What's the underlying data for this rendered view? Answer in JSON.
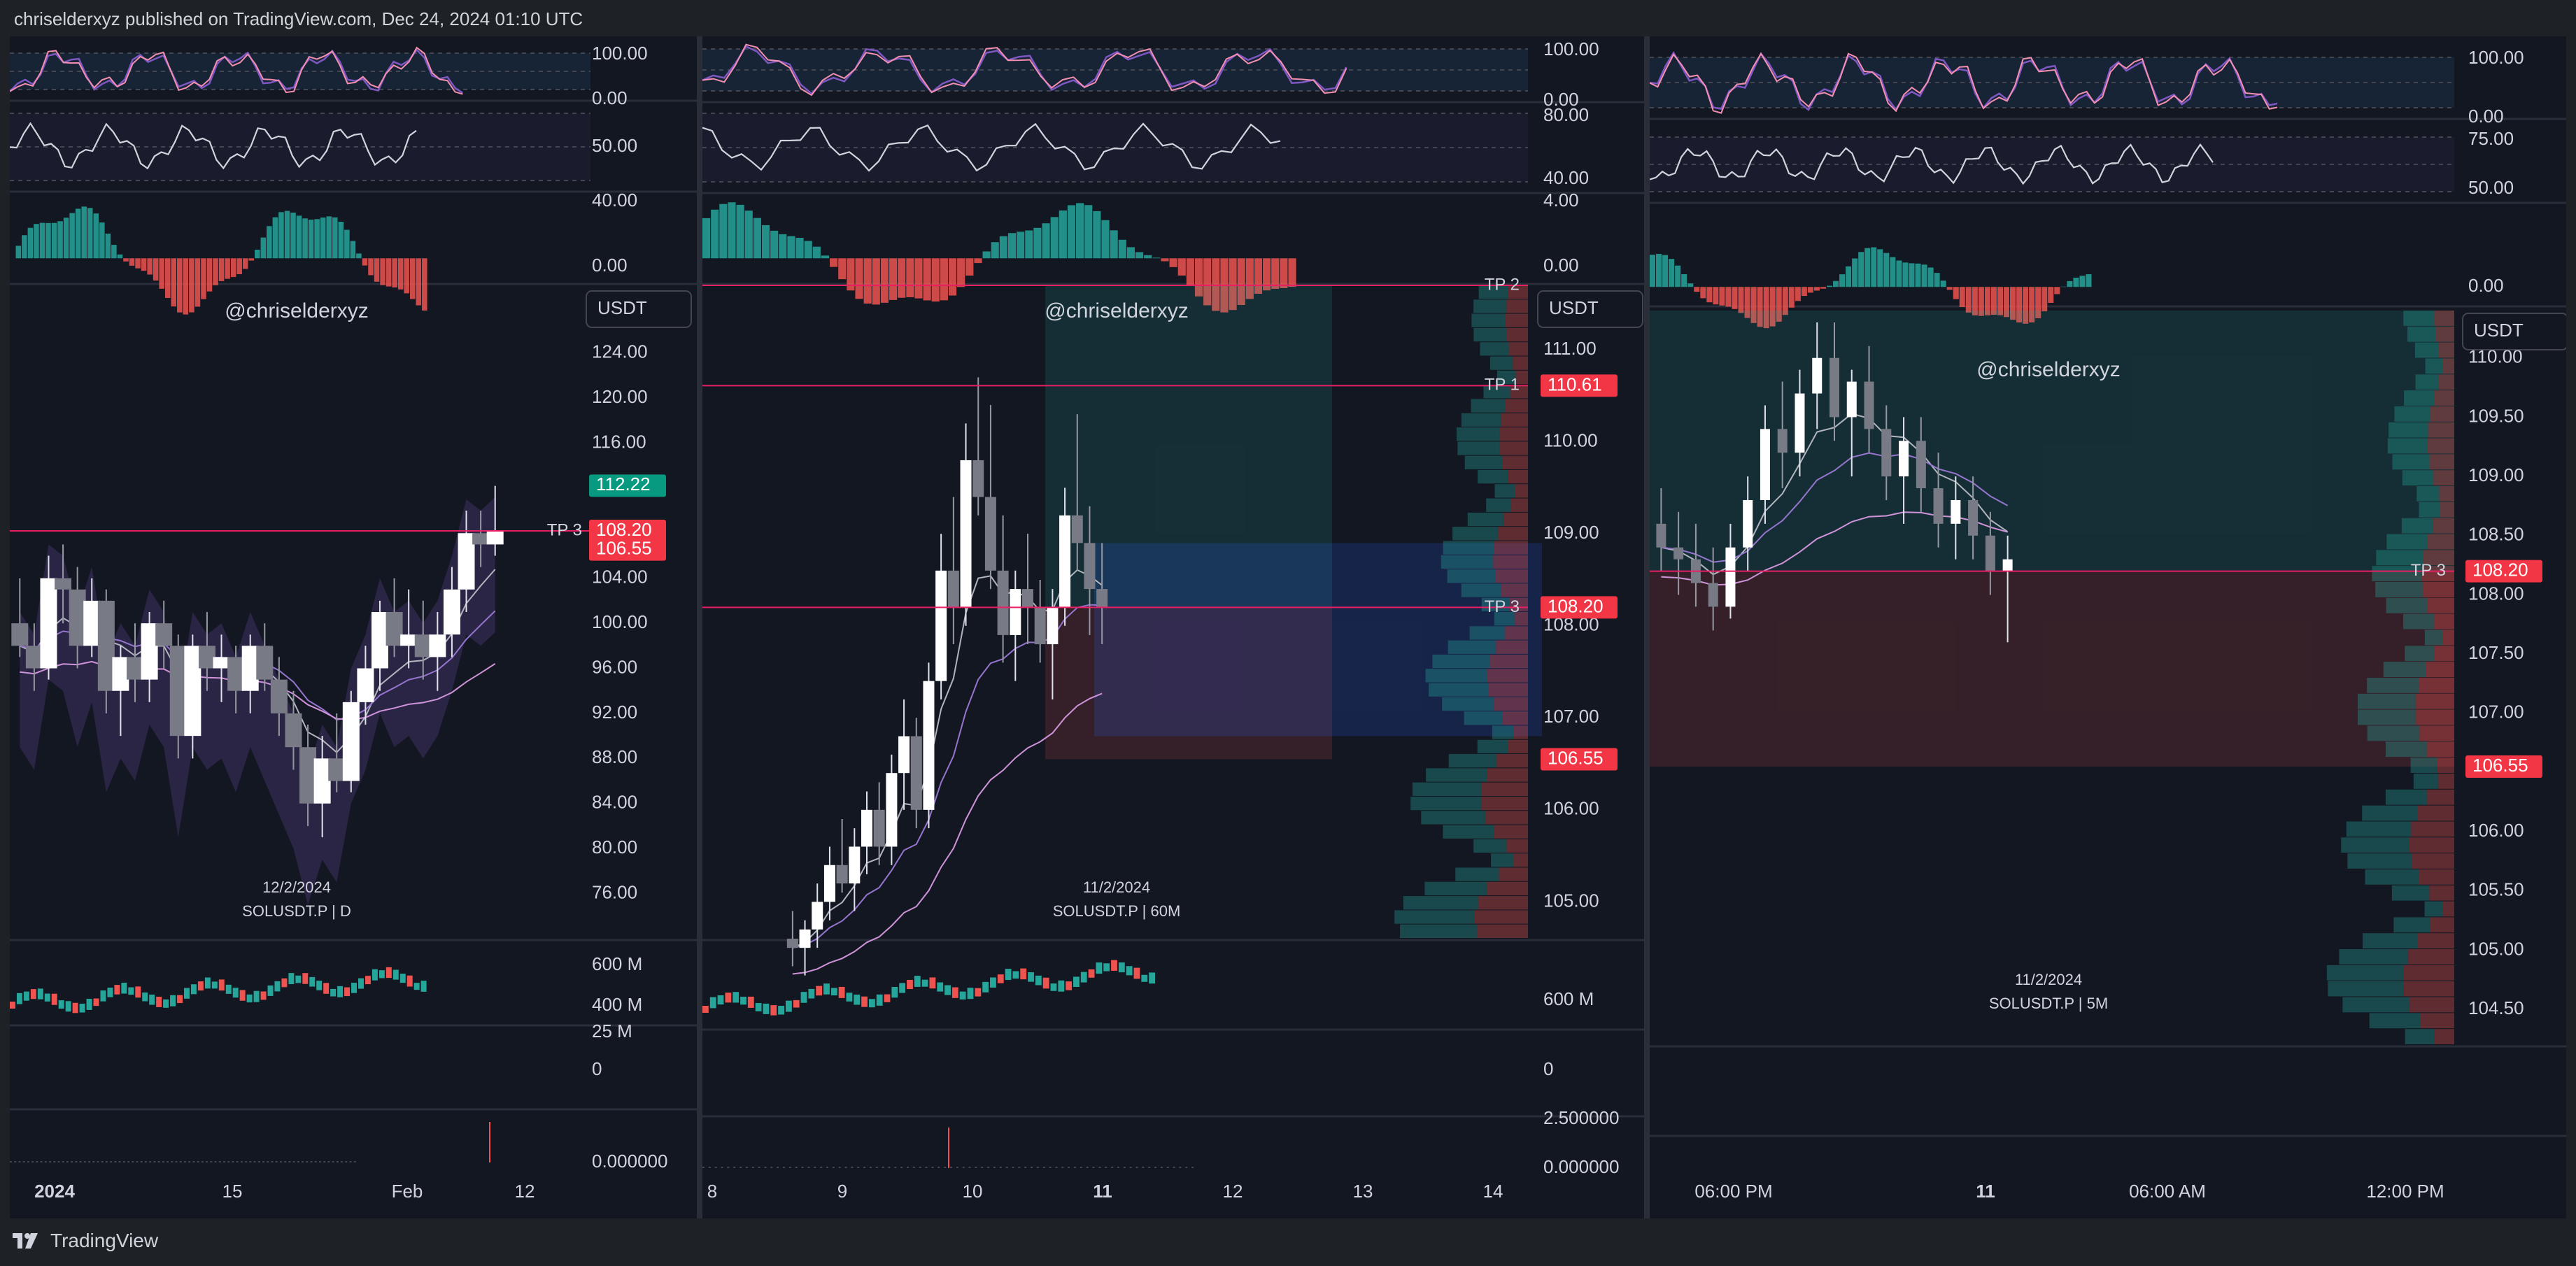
{
  "header": {
    "published": "chriselderxyz published on TradingView.com, Dec 24, 2024 01:10 UTC"
  },
  "footer": {
    "brand": "TradingView",
    "logo_icon": "tradingview-logo-icon"
  },
  "colors": {
    "bg": "#131722",
    "up": "#26a69a",
    "down": "#ef5350",
    "tp_line": "#e91e63",
    "tp_tag": "#f23645",
    "green_tag": "#089981",
    "grid": "#2a2e39",
    "text": "#d1d4dc"
  },
  "chart_data": [
    {
      "type": "candlestick",
      "watermark": "@chriselderxyz",
      "currency": "USDT",
      "symbol_label": "SOLUSDT.P | D",
      "date_label": "12/2/2024",
      "price_axis": [
        "124.00",
        "120.00",
        "116.00",
        "112.00",
        "108.00",
        "104.00",
        "100.00",
        "96.00",
        "92.00",
        "88.00",
        "84.00",
        "80.00",
        "76.00"
      ],
      "ylim": [
        72,
        130
      ],
      "time_axis": [
        "2024",
        "15",
        "Feb",
        "12"
      ],
      "price_tags": [
        {
          "label": "112.22",
          "value": 112.22,
          "color": "green"
        },
        {
          "label": "108.20",
          "value": 108.2,
          "color": "red"
        },
        {
          "label": "106.55",
          "value": 106.55,
          "color": "red"
        }
      ],
      "levels": [
        {
          "label": "TP 3",
          "value": 108.2
        }
      ],
      "candles": [
        [
          100,
          104,
          97,
          98
        ],
        [
          98,
          100,
          94,
          96
        ],
        [
          96,
          106,
          95,
          104
        ],
        [
          104,
          107,
          100,
          103
        ],
        [
          103,
          105,
          96,
          98
        ],
        [
          98,
          104,
          97,
          102
        ],
        [
          102,
          103,
          92,
          94
        ],
        [
          94,
          98,
          90,
          97
        ],
        [
          97,
          100,
          93,
          95
        ],
        [
          95,
          101,
          93,
          100
        ],
        [
          100,
          102,
          96,
          98
        ],
        [
          98,
          99,
          88,
          90
        ],
        [
          90,
          99,
          88,
          98
        ],
        [
          98,
          101,
          94,
          96
        ],
        [
          96,
          99,
          93,
          97
        ],
        [
          97,
          98,
          92,
          94
        ],
        [
          94,
          99,
          92,
          98
        ],
        [
          98,
          100,
          94,
          95
        ],
        [
          95,
          97,
          90,
          92
        ],
        [
          92,
          94,
          87,
          89
        ],
        [
          89,
          91,
          82,
          84
        ],
        [
          84,
          90,
          81,
          88
        ],
        [
          88,
          92,
          85,
          86
        ],
        [
          86,
          94,
          85,
          93
        ],
        [
          93,
          98,
          91,
          96
        ],
        [
          96,
          102,
          94,
          101
        ],
        [
          101,
          104,
          97,
          98
        ],
        [
          98,
          103,
          96,
          99
        ],
        [
          99,
          102,
          95,
          97
        ],
        [
          97,
          101,
          94,
          99
        ],
        [
          99,
          105,
          97,
          103
        ],
        [
          103,
          110,
          101,
          108
        ],
        [
          108,
          110,
          105,
          107
        ],
        [
          107,
          112.2,
          106,
          108.2
        ]
      ],
      "volume_axis": [
        "600 M",
        "400 M"
      ],
      "indicator_axes": {
        "stoch": [
          "100.00",
          "0.00"
        ],
        "rsi": [
          "50.00"
        ],
        "macd": [
          "40.00",
          "0.00"
        ],
        "oi": [
          "25 M",
          "0"
        ],
        "liq": [
          "0.000000"
        ]
      }
    },
    {
      "type": "candlestick",
      "watermark": "@chriselderxyz",
      "currency": "USDT",
      "symbol_label": "SOLUSDT.P | 60M",
      "date_label": "11/2/2024",
      "price_axis": [
        "111.00",
        "110.00",
        "109.00",
        "108.00",
        "107.00",
        "106.00",
        "105.00"
      ],
      "ylim": [
        104.6,
        111.7
      ],
      "time_axis": [
        "8",
        "9",
        "10",
        "11",
        "12",
        "13",
        "14"
      ],
      "price_tags": [
        {
          "label": "110.61",
          "value": 110.61,
          "color": "red"
        },
        {
          "label": "108.20",
          "value": 108.2,
          "color": "red"
        },
        {
          "label": "106.55",
          "value": 106.55,
          "color": "red"
        }
      ],
      "levels": [
        {
          "label": "TP 2",
          "value": 111.7
        },
        {
          "label": "TP 1",
          "value": 110.61
        },
        {
          "label": "TP 3",
          "value": 108.2
        }
      ],
      "candles": [
        [
          104.6,
          104.9,
          104.3,
          104.5
        ],
        [
          104.5,
          104.8,
          104.2,
          104.7
        ],
        [
          104.7,
          105.2,
          104.5,
          105.0
        ],
        [
          105.0,
          105.6,
          104.8,
          105.4
        ],
        [
          105.4,
          105.9,
          105.1,
          105.2
        ],
        [
          105.2,
          105.8,
          104.9,
          105.6
        ],
        [
          105.6,
          106.2,
          105.3,
          106.0
        ],
        [
          106.0,
          106.3,
          105.4,
          105.6
        ],
        [
          105.6,
          106.6,
          105.4,
          106.4
        ],
        [
          106.4,
          107.2,
          106.0,
          106.8
        ],
        [
          106.8,
          107.0,
          105.8,
          106.0
        ],
        [
          106.0,
          107.6,
          105.8,
          107.4
        ],
        [
          107.4,
          109.0,
          107.2,
          108.6
        ],
        [
          108.6,
          109.4,
          107.8,
          108.2
        ],
        [
          108.2,
          110.2,
          108.0,
          109.8
        ],
        [
          109.8,
          110.7,
          109.2,
          109.4
        ],
        [
          109.4,
          110.4,
          108.4,
          108.6
        ],
        [
          108.6,
          109.2,
          107.6,
          107.9
        ],
        [
          107.9,
          108.6,
          107.4,
          108.4
        ],
        [
          108.4,
          109.0,
          107.8,
          108.2
        ],
        [
          108.2,
          108.5,
          107.6,
          107.8
        ],
        [
          107.8,
          108.4,
          107.2,
          108.2
        ],
        [
          108.2,
          109.5,
          108.0,
          109.2
        ],
        [
          109.2,
          110.3,
          108.6,
          108.9
        ],
        [
          108.9,
          109.3,
          107.9,
          108.4
        ],
        [
          108.4,
          108.9,
          107.8,
          108.2
        ]
      ],
      "volume_axis": [
        "600 M"
      ],
      "indicator_axes": {
        "stoch": [
          "100.00",
          "0.00"
        ],
        "rsi": [
          "80.00",
          "40.00"
        ],
        "macd": [
          "4.00",
          "0.00"
        ],
        "oi": [
          "0"
        ],
        "liq": [
          "2.500000",
          "0.000000"
        ]
      }
    },
    {
      "type": "candlestick",
      "watermark": "@chriselderxyz",
      "currency": "USDT",
      "symbol_label": "SOLUSDT.P | 5M",
      "date_label": "11/2/2024",
      "price_axis": [
        "110.00",
        "109.50",
        "109.00",
        "108.50",
        "108.00",
        "107.50",
        "107.00",
        "106.50",
        "106.00",
        "105.50",
        "105.00",
        "104.50"
      ],
      "ylim": [
        104.2,
        110.4
      ],
      "time_axis": [
        "06:00 PM",
        "11",
        "06:00 AM",
        "12:00 PM"
      ],
      "price_tags": [
        {
          "label": "108.20",
          "value": 108.2,
          "color": "red"
        },
        {
          "label": "106.55",
          "value": 106.55,
          "color": "red"
        }
      ],
      "levels": [
        {
          "label": "TP 3",
          "value": 108.2
        }
      ],
      "candles": [
        [
          108.6,
          108.9,
          108.2,
          108.4
        ],
        [
          108.4,
          108.7,
          108.0,
          108.3
        ],
        [
          108.3,
          108.6,
          107.9,
          108.1
        ],
        [
          108.1,
          108.4,
          107.7,
          107.9
        ],
        [
          107.9,
          108.6,
          107.8,
          108.4
        ],
        [
          108.4,
          109.0,
          108.2,
          108.8
        ],
        [
          108.8,
          109.6,
          108.6,
          109.4
        ],
        [
          109.4,
          109.8,
          108.9,
          109.2
        ],
        [
          109.2,
          109.9,
          109.0,
          109.7
        ],
        [
          109.7,
          110.3,
          109.4,
          110.0
        ],
        [
          110.0,
          110.3,
          109.3,
          109.5
        ],
        [
          109.5,
          109.9,
          109.0,
          109.8
        ],
        [
          109.8,
          110.1,
          109.2,
          109.4
        ],
        [
          109.4,
          109.6,
          108.8,
          109.0
        ],
        [
          109.0,
          109.5,
          108.6,
          109.3
        ],
        [
          109.3,
          109.5,
          108.7,
          108.9
        ],
        [
          108.9,
          109.2,
          108.4,
          108.6
        ],
        [
          108.6,
          109.0,
          108.3,
          108.8
        ],
        [
          108.8,
          109.0,
          108.3,
          108.5
        ],
        [
          108.5,
          108.7,
          108.0,
          108.2
        ],
        [
          108.2,
          108.5,
          107.6,
          108.3
        ]
      ],
      "indicator_axes": {
        "stoch": [
          "100.00",
          "0.00"
        ],
        "rsi": [
          "75.00",
          "50.00"
        ],
        "macd": [
          "0.00"
        ]
      }
    }
  ]
}
